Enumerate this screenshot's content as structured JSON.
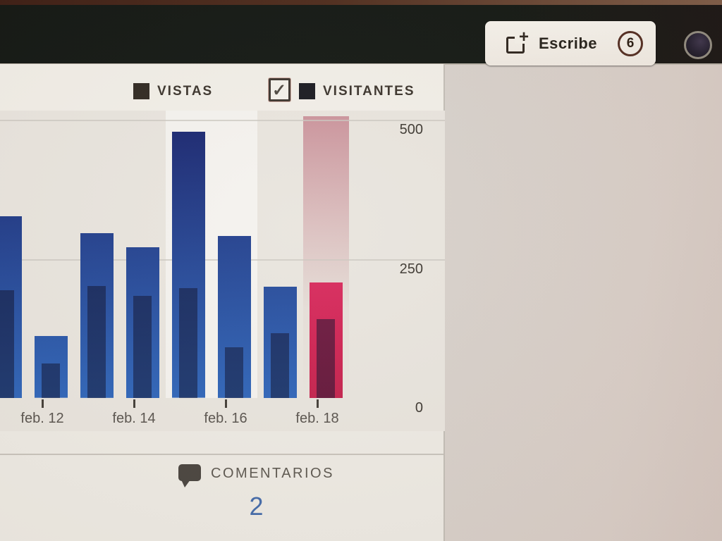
{
  "toolbar": {
    "write_label": "Escribe",
    "draft_count": "6",
    "avatar": "user-avatar"
  },
  "legend": {
    "vistas_label": "VISTAS",
    "visitantes_label": "VISITANTES",
    "visitantes_checkbox_checked": true,
    "checkmark_glyph": "✓"
  },
  "chart_data": {
    "type": "bar",
    "title": "",
    "xlabel": "",
    "ylabel": "",
    "ylim": [
      0,
      500
    ],
    "yticks": [
      500,
      250,
      0
    ],
    "grid": "horizontal",
    "legend_position": "top",
    "series": [
      {
        "name": "VISTAS",
        "values": [
          327,
          111,
          296,
          271,
          478,
          291,
          200,
          208
        ]
      },
      {
        "name": "VISITANTES",
        "values": [
          194,
          62,
          201,
          184,
          197,
          91,
          116,
          142
        ]
      }
    ],
    "x_ticks": [
      {
        "label": "feb. 12",
        "bar_index": 1
      },
      {
        "label": "feb. 14",
        "bar_index": 3
      },
      {
        "label": "feb. 16",
        "bar_index": 5
      },
      {
        "label": "feb. 18",
        "bar_index": 7
      }
    ],
    "highlight": {
      "bar_index": 7,
      "bar_color": "#ce1e4f",
      "band_color": "#c98d96"
    },
    "light_band": {
      "from_bar_index": 4,
      "to_bar_index": 5
    },
    "colors": {
      "views_bar_top": "#131f6a",
      "views_bar_bottom": "#2a62b8",
      "visitors_overlay": "rgba(8,10,38,0.52)",
      "gridline": "#cac5bd"
    }
  },
  "comments": {
    "label": "COMENTARIOS",
    "count": "2"
  }
}
